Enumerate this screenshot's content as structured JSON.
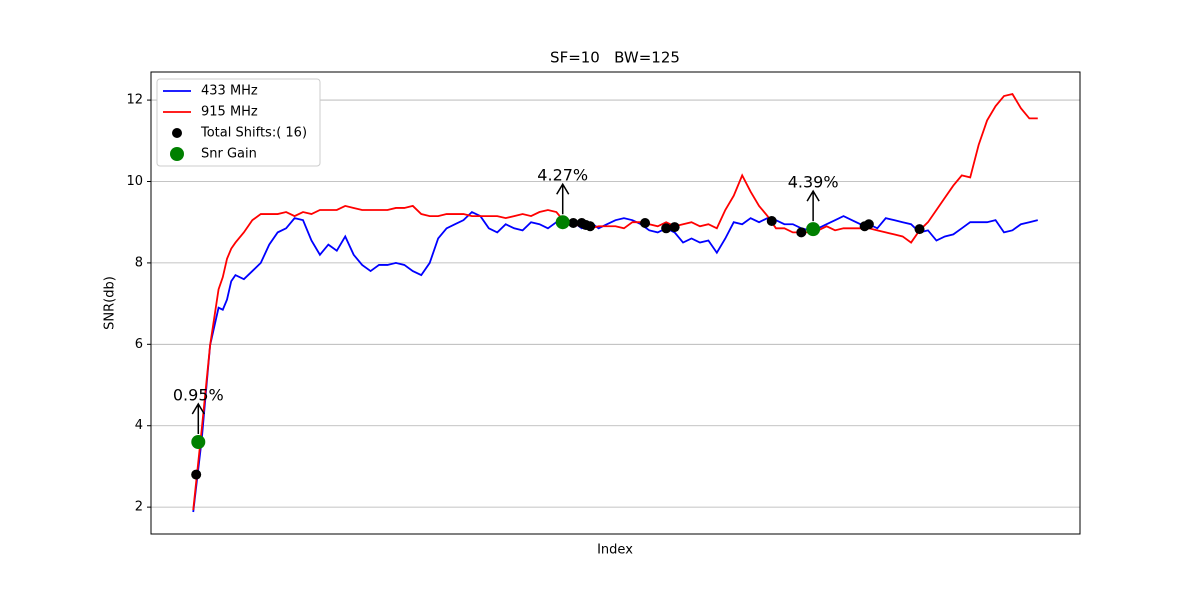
{
  "chart_data": {
    "type": "line",
    "title": "SF=10   BW=125",
    "xlabel": "Index",
    "ylabel": "SNR(db)",
    "xlim": [
      -10,
      210
    ],
    "ylim": [
      1.34,
      12.69
    ],
    "yticks": [
      2,
      4,
      6,
      8,
      10,
      12
    ],
    "grid": true,
    "legend": "upper left",
    "x": [
      0,
      2,
      4,
      6,
      7,
      8,
      9,
      10,
      12,
      14,
      16,
      18,
      20,
      22,
      24,
      26,
      28,
      30,
      32,
      34,
      36,
      38,
      40,
      42,
      44,
      46,
      48,
      50,
      52,
      54,
      56,
      58,
      60,
      62,
      64,
      66,
      68,
      70,
      72,
      74,
      76,
      78,
      80,
      82,
      84,
      86,
      88,
      90,
      92,
      94,
      96,
      98,
      100,
      102,
      104,
      106,
      108,
      110,
      112,
      114,
      116,
      118,
      120,
      122,
      124,
      126,
      128,
      130,
      132,
      134,
      136,
      138,
      140,
      142,
      144,
      146,
      148,
      150,
      152,
      154,
      156,
      158,
      160,
      162,
      164,
      166,
      168,
      170,
      172,
      174,
      176,
      178,
      180,
      182,
      184,
      186,
      188,
      190,
      192,
      194,
      196,
      198,
      200
    ],
    "series": [
      {
        "name": "433 MHz",
        "color": "#0000ff",
        "values": [
          1.88,
          3.65,
          5.98,
          6.9,
          6.85,
          7.1,
          7.55,
          7.7,
          7.6,
          7.8,
          8.0,
          8.45,
          8.75,
          8.85,
          9.1,
          9.05,
          8.55,
          8.2,
          8.45,
          8.3,
          8.65,
          8.2,
          7.95,
          7.8,
          7.95,
          7.95,
          8.0,
          7.95,
          7.8,
          7.7,
          8.0,
          8.6,
          8.85,
          8.95,
          9.05,
          9.25,
          9.15,
          8.85,
          8.75,
          8.95,
          8.85,
          8.8,
          9.0,
          8.95,
          8.85,
          9.0,
          9.05,
          9.0,
          8.85,
          9.0,
          8.85,
          8.95,
          9.05,
          9.1,
          9.05,
          8.95,
          8.8,
          8.75,
          8.85,
          8.75,
          8.5,
          8.6,
          8.5,
          8.55,
          8.25,
          8.6,
          9.0,
          8.95,
          9.1,
          9.0,
          9.1,
          9.05,
          8.95,
          8.95,
          8.85,
          8.8,
          8.85,
          8.95,
          9.05,
          9.15,
          9.05,
          8.95,
          8.95,
          8.85,
          9.1,
          9.05,
          9.0,
          8.95,
          8.75,
          8.8,
          8.55,
          8.65,
          8.7,
          8.85,
          9.0,
          9.0,
          9.0,
          9.05,
          8.75,
          8.8,
          8.95,
          9.0,
          9.05
        ]
      },
      {
        "name": "915 MHz",
        "color": "#ff0000",
        "values": [
          1.93,
          3.9,
          5.98,
          7.35,
          7.65,
          8.1,
          8.35,
          8.5,
          8.75,
          9.05,
          9.2,
          9.2,
          9.2,
          9.25,
          9.15,
          9.25,
          9.2,
          9.3,
          9.3,
          9.3,
          9.4,
          9.35,
          9.3,
          9.3,
          9.3,
          9.3,
          9.35,
          9.35,
          9.4,
          9.2,
          9.15,
          9.15,
          9.2,
          9.2,
          9.2,
          9.15,
          9.15,
          9.15,
          9.15,
          9.1,
          9.15,
          9.2,
          9.15,
          9.25,
          9.3,
          9.25,
          9.0,
          8.95,
          8.9,
          8.85,
          8.9,
          8.9,
          8.9,
          8.85,
          9.0,
          9.0,
          8.95,
          8.9,
          9.0,
          8.9,
          8.95,
          9.0,
          8.9,
          8.95,
          8.85,
          9.3,
          9.65,
          10.15,
          9.75,
          9.4,
          9.15,
          8.85,
          8.85,
          8.75,
          8.75,
          8.75,
          8.8,
          8.9,
          8.8,
          8.85,
          8.85,
          8.85,
          8.85,
          8.8,
          8.75,
          8.7,
          8.65,
          8.5,
          8.8,
          9.0,
          9.3,
          9.6,
          9.9,
          10.15,
          10.1,
          10.9,
          11.5,
          11.85,
          12.1,
          12.15,
          11.8,
          11.55,
          11.55
        ]
      }
    ],
    "scatter": [
      {
        "name": "Total Shifts:( 16)",
        "color": "#000000",
        "x": [
          0.7,
          1.2,
          87.5,
          90,
          92,
          93,
          94,
          107,
          112,
          114,
          137,
          144,
          146.8,
          159,
          160,
          172
        ],
        "values": [
          2.8,
          3.6,
          9.0,
          8.98,
          8.98,
          8.93,
          8.9,
          8.98,
          8.85,
          8.88,
          9.03,
          8.75,
          8.83,
          8.9,
          8.95,
          8.83
        ]
      },
      {
        "name": "Snr Gain",
        "color": "#008000",
        "x": [
          1.2,
          87.5,
          146.8
        ],
        "values": [
          3.6,
          9.0,
          8.83
        ]
      }
    ],
    "annotations": [
      "0.95%",
      "4.27%",
      "4.39%"
    ]
  }
}
